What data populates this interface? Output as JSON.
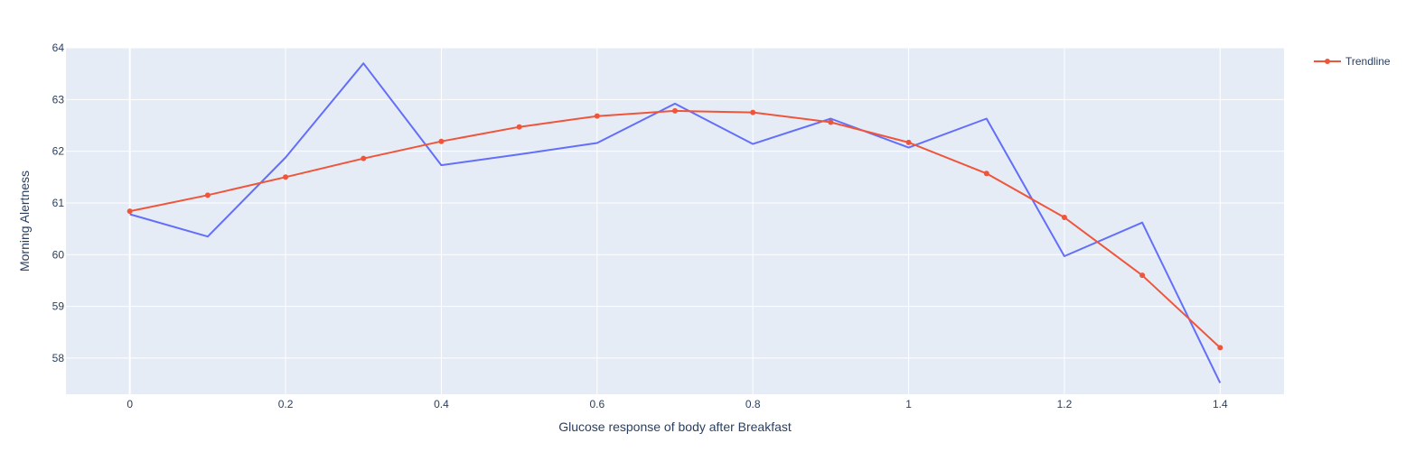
{
  "chart_data": {
    "type": "line",
    "title": "",
    "xlabel": "Glucose response of body after Breakfast",
    "ylabel": "Morning Alertness",
    "xlim": [
      -0.082,
      1.482
    ],
    "ylim": [
      57.3,
      64.0
    ],
    "x_ticks": [
      0,
      0.2,
      0.4,
      0.6,
      0.8,
      1,
      1.2,
      1.4
    ],
    "x_tick_labels": [
      "0",
      "0.2",
      "0.4",
      "0.6",
      "0.8",
      "1",
      "1.2",
      "1.4"
    ],
    "y_ticks": [
      58,
      59,
      60,
      61,
      62,
      63,
      64
    ],
    "y_tick_labels": [
      "58",
      "59",
      "60",
      "61",
      "62",
      "63",
      "64"
    ],
    "grid": true,
    "legend_position": "top-right",
    "colors": {
      "plot_bg": "#e5ecf6",
      "grid": "#ffffff",
      "text": "#2a3f5f"
    },
    "series": [
      {
        "name": "",
        "color": "#636efa",
        "mode": "lines",
        "show_in_legend": false,
        "x": [
          0,
          0.1,
          0.2,
          0.3,
          0.4,
          0.5,
          0.6,
          0.7,
          0.8,
          0.9,
          1.0,
          1.1,
          1.2,
          1.3,
          1.4
        ],
        "y": [
          60.78,
          60.35,
          61.88,
          63.7,
          61.73,
          61.94,
          62.16,
          62.92,
          62.14,
          62.63,
          62.07,
          62.63,
          59.97,
          60.62,
          57.52
        ]
      },
      {
        "name": "Trendline",
        "color": "#ef553b",
        "mode": "lines+markers",
        "show_in_legend": true,
        "x": [
          0,
          0.1,
          0.2,
          0.3,
          0.4,
          0.5,
          0.6,
          0.7,
          0.8,
          0.9,
          1.0,
          1.1,
          1.2,
          1.3,
          1.4
        ],
        "y": [
          60.84,
          61.15,
          61.5,
          61.86,
          62.19,
          62.47,
          62.68,
          62.78,
          62.75,
          62.56,
          62.17,
          61.57,
          60.72,
          59.6,
          58.2
        ]
      }
    ]
  }
}
